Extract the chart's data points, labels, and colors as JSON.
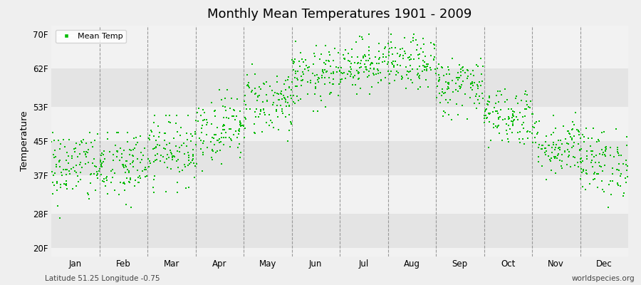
{
  "title": "Monthly Mean Temperatures 1901 - 2009",
  "ylabel": "Temperature",
  "xlabel_bottom_left": "Latitude 51.25 Longitude -0.75",
  "xlabel_bottom_right": "worldspecies.org",
  "yticks": [
    20,
    28,
    37,
    45,
    53,
    62,
    70
  ],
  "ytick_labels": [
    "20F",
    "28F",
    "37F",
    "45F",
    "53F",
    "62F",
    "70F"
  ],
  "months": [
    "Jan",
    "Feb",
    "Mar",
    "Apr",
    "May",
    "Jun",
    "Jul",
    "Aug",
    "Sep",
    "Oct",
    "Nov",
    "Dec"
  ],
  "dot_color": "#00bb00",
  "bg_color": "#efefef",
  "stripe_color_light": "#f2f2f2",
  "stripe_color_dark": "#e4e4e4",
  "vline_color": "#999999",
  "n_years": 109,
  "seed": 42,
  "monthly_mean_f": [
    39,
    39,
    43,
    48,
    54,
    60,
    63,
    63,
    58,
    51,
    44,
    40
  ],
  "monthly_std_f": [
    4.5,
    4.5,
    4.0,
    4.0,
    4.0,
    3.5,
    3.0,
    3.0,
    3.5,
    3.5,
    3.5,
    4.0
  ],
  "monthly_min_f": [
    27,
    26,
    33,
    38,
    45,
    52,
    56,
    55,
    49,
    41,
    36,
    29
  ],
  "monthly_max_f": [
    47,
    47,
    51,
    57,
    63,
    69,
    70,
    70,
    65,
    59,
    52,
    48
  ],
  "ylim": [
    18,
    72
  ],
  "xlim": [
    0,
    12
  ],
  "marker_size": 4
}
